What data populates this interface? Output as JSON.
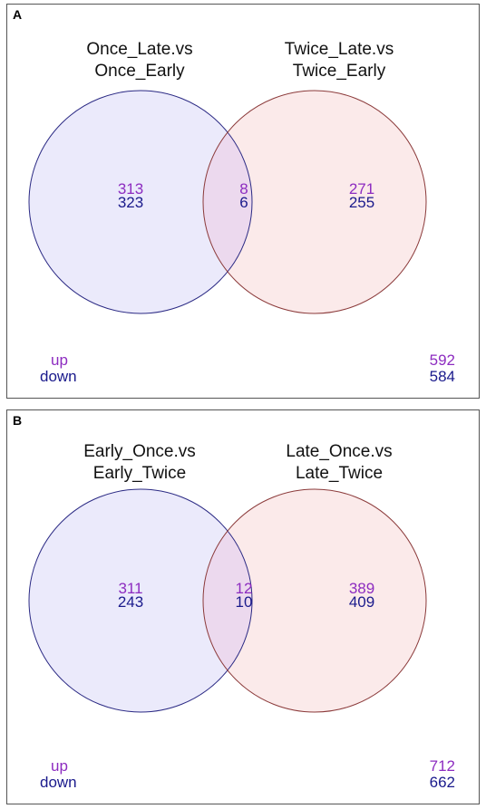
{
  "colors": {
    "up": "#8d2cc0",
    "down": "#1a1a8c",
    "left_fill": "#ebeafb",
    "left_stroke": "#2b2a84",
    "right_fill": "#fbeaea",
    "right_stroke": "#8b3a3a",
    "overlap_fill": "#ecd9ee"
  },
  "legend": {
    "up": "up",
    "down": "down"
  },
  "panels": {
    "a": {
      "label": "A",
      "left_set": {
        "line1": "Once_Late.vs",
        "line2": "Once_Early"
      },
      "right_set": {
        "line1": "Twice_Late.vs",
        "line2": "Twice_Early"
      },
      "left_only": {
        "up": "313",
        "down": "323"
      },
      "overlap": {
        "up": "8",
        "down": "6"
      },
      "right_only": {
        "up": "271",
        "down": "255"
      },
      "total": {
        "up": "592",
        "down": "584"
      }
    },
    "b": {
      "label": "B",
      "left_set": {
        "line1": "Early_Once.vs",
        "line2": "Early_Twice"
      },
      "right_set": {
        "line1": "Late_Once.vs",
        "line2": "Late_Twice"
      },
      "left_only": {
        "up": "311",
        "down": "243"
      },
      "overlap": {
        "up": "12",
        "down": "10"
      },
      "right_only": {
        "up": "389",
        "down": "409"
      },
      "total": {
        "up": "712",
        "down": "662"
      }
    }
  }
}
